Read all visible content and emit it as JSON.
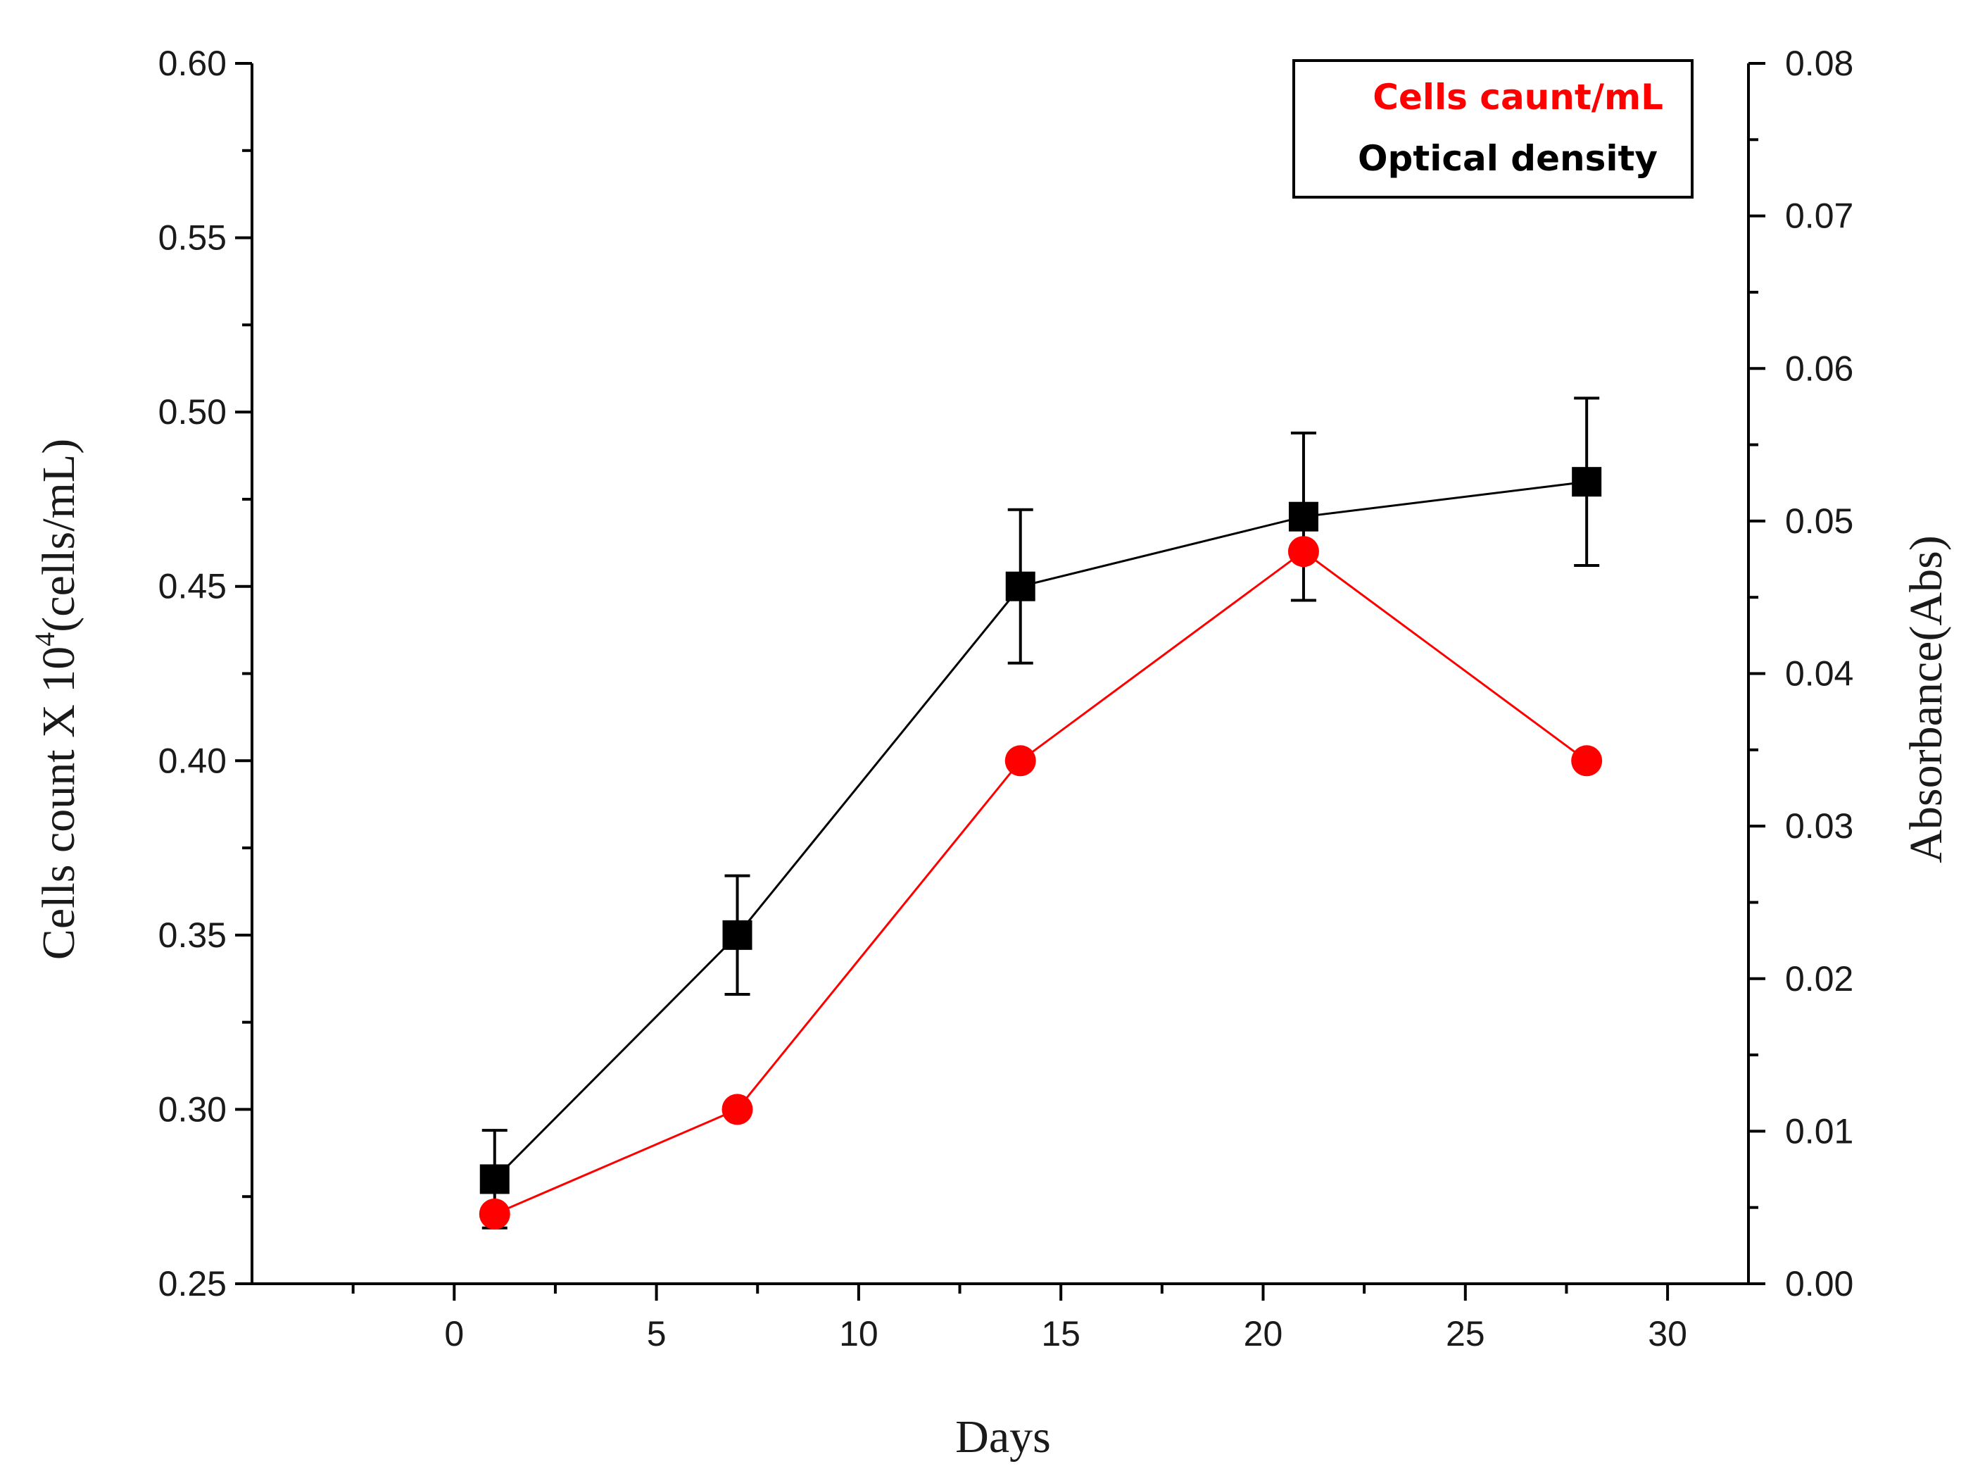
{
  "chart_data": {
    "type": "line",
    "title": "",
    "xlabel": "Days",
    "ylabel": {
      "prefix": "Cells count X 10",
      "exponent": "4",
      "suffix": "(cells/mL)"
    },
    "y2label": "Absorbance(Abs)",
    "xlim": [
      -5,
      32
    ],
    "ylim": [
      0.25,
      0.6
    ],
    "y2lim": [
      0.0,
      0.08
    ],
    "xticks": [
      0,
      5,
      10,
      15,
      20,
      25,
      30
    ],
    "xtick_labels": [
      "0",
      "5",
      "10",
      "15",
      "20",
      "25",
      "30"
    ],
    "yticks": [
      0.25,
      0.3,
      0.35,
      0.4,
      0.45,
      0.5,
      0.55,
      0.6
    ],
    "ytick_labels": [
      "0.25",
      "0.30",
      "0.35",
      "0.40",
      "0.45",
      "0.50",
      "0.55",
      "0.60"
    ],
    "y2ticks": [
      0.0,
      0.01,
      0.02,
      0.03,
      0.04,
      0.05,
      0.06,
      0.07,
      0.08
    ],
    "y2tick_labels": [
      "0.00",
      "0.01",
      "0.02",
      "0.03",
      "0.04",
      "0.05",
      "0.06",
      "0.07",
      "0.08"
    ],
    "grid": false,
    "legend_position": "top-right",
    "series": [
      {
        "name": "Cells caunt/mL",
        "color": "#ff0000",
        "marker": "circle",
        "x": [
          1,
          7,
          14,
          21,
          28
        ],
        "y": [
          0.27,
          0.3,
          0.4,
          0.46,
          0.4
        ]
      },
      {
        "name": "Optical density",
        "color": "#000000",
        "marker": "square",
        "x": [
          1,
          7,
          14,
          21,
          28
        ],
        "y": [
          0.28,
          0.35,
          0.45,
          0.47,
          0.48
        ],
        "error": [
          0.014,
          0.017,
          0.022,
          0.024,
          0.024
        ]
      }
    ]
  }
}
